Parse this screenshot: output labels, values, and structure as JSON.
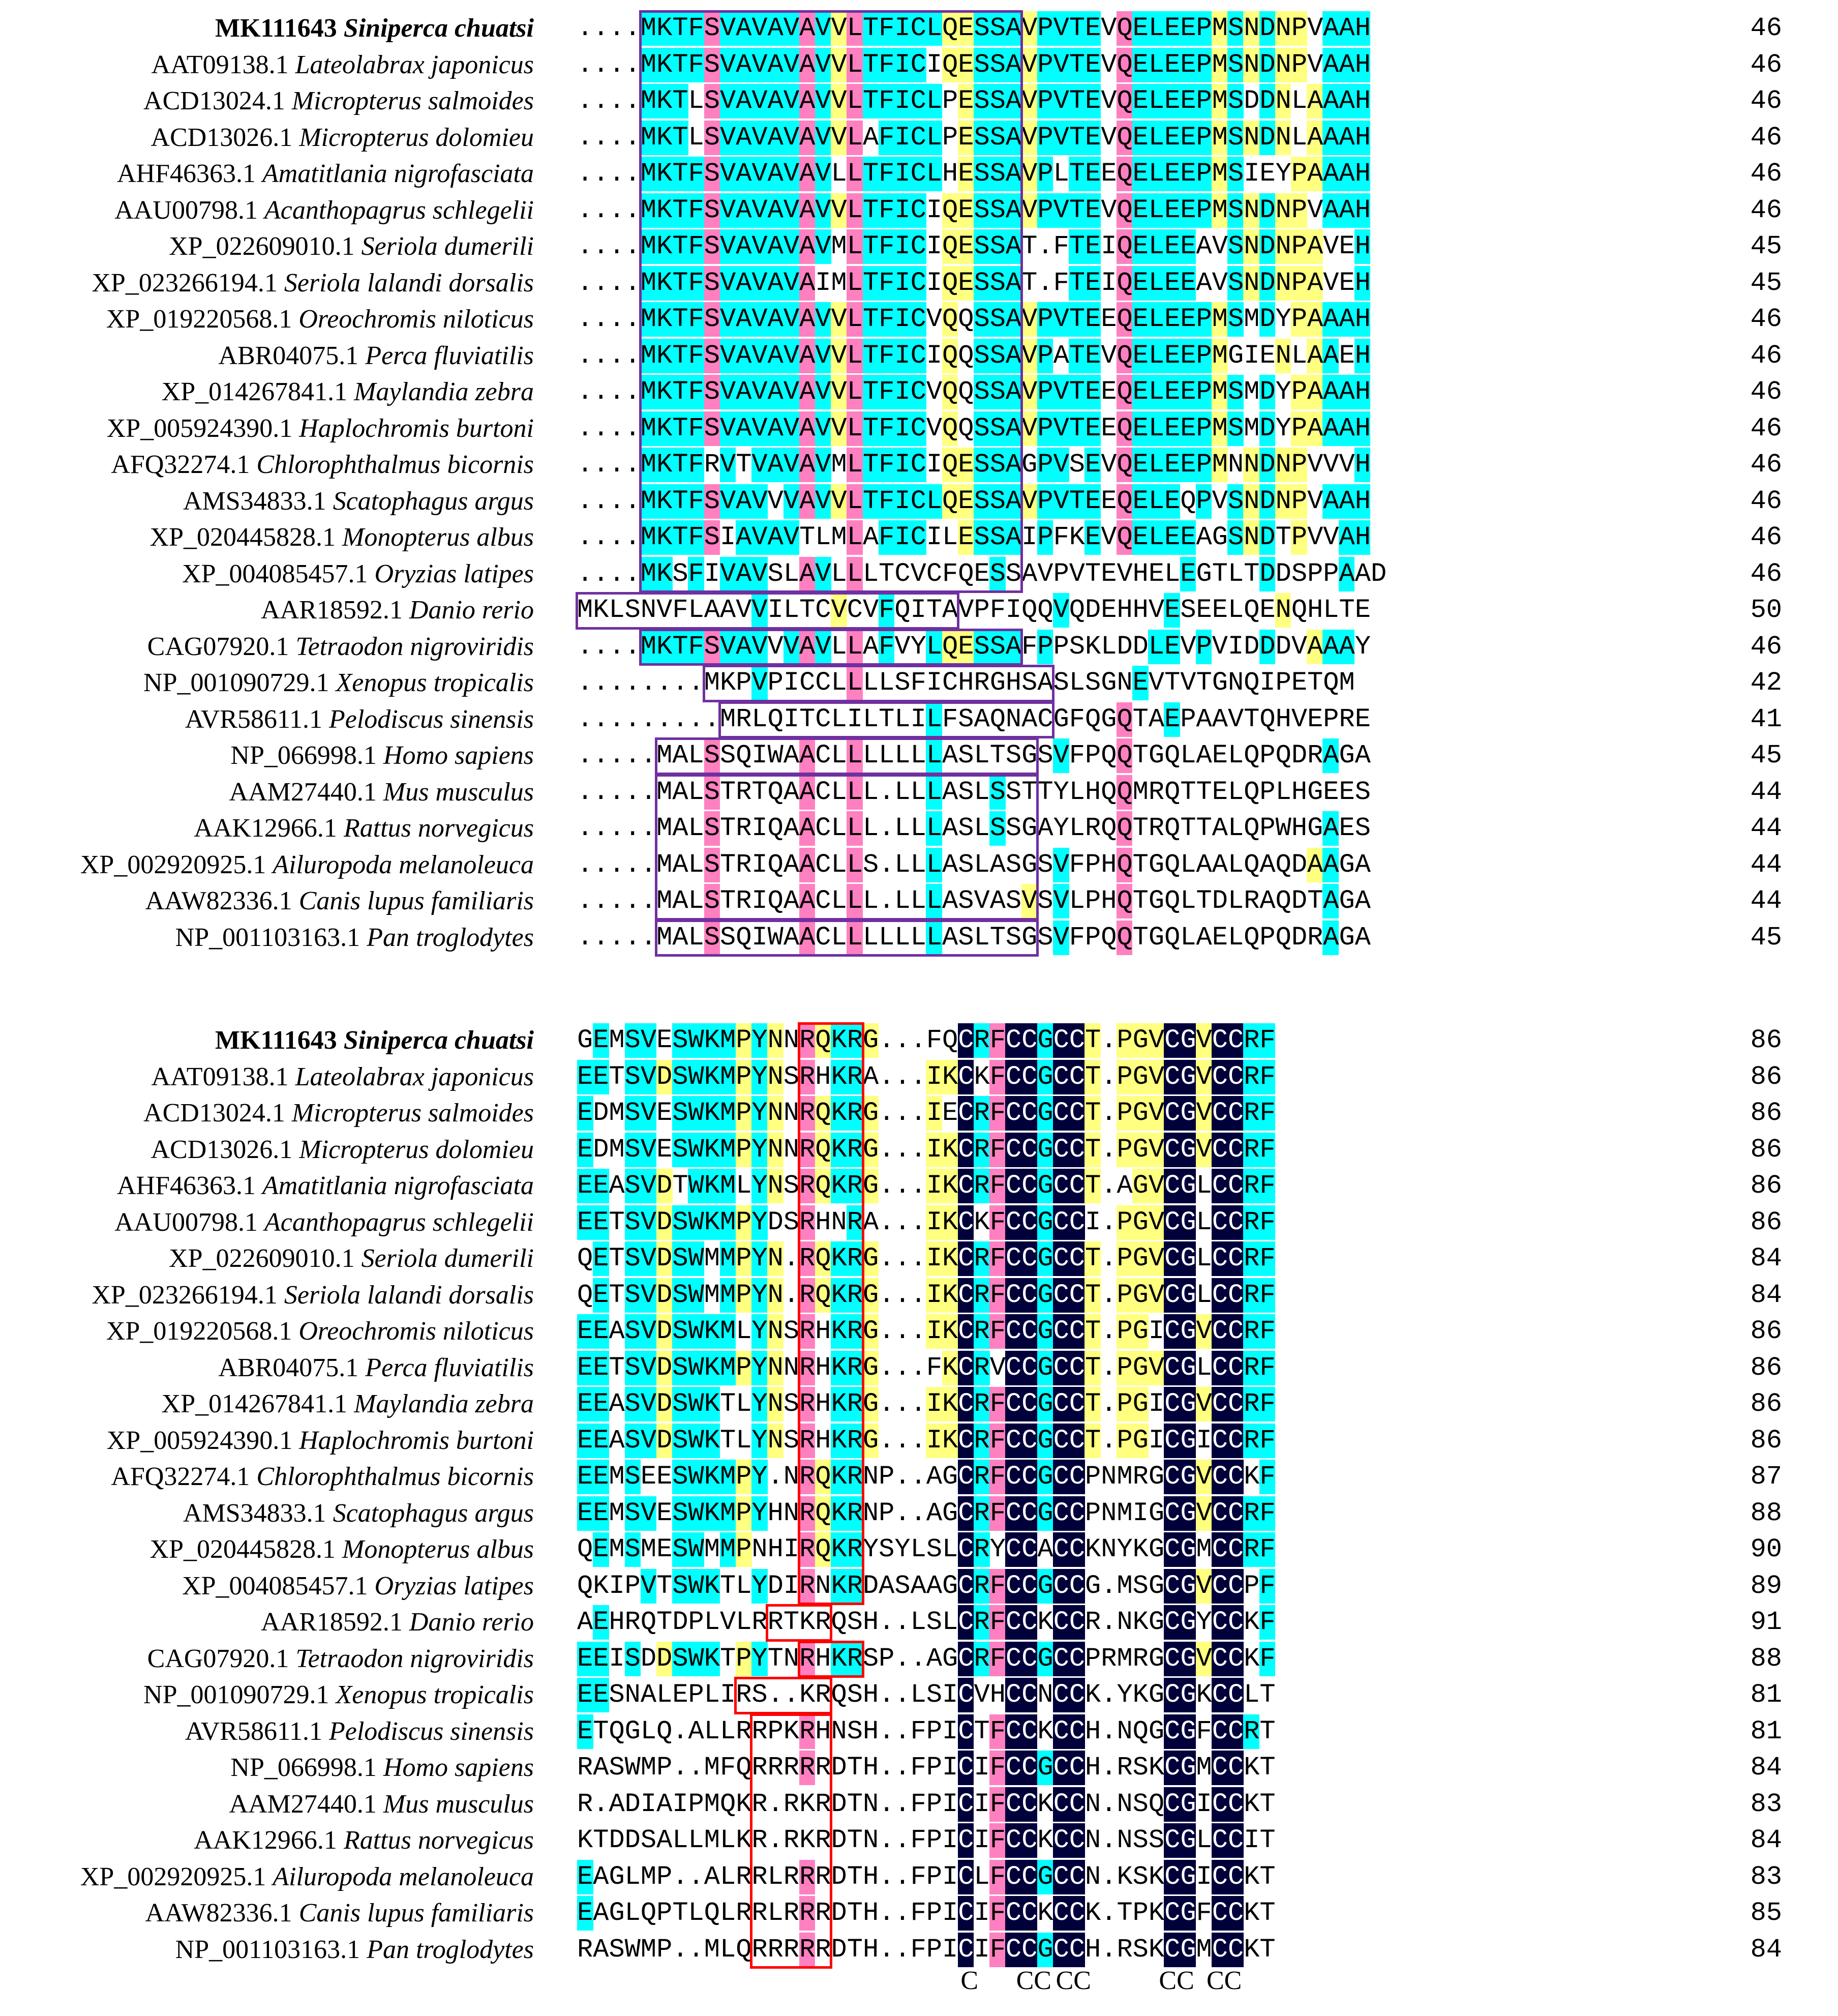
{
  "figure": {
    "blocks": [
      {
        "rows": [
          {
            "acc": "MK111643",
            "sp": "Siniperca chuatsi",
            "bold": true,
            "seq": "....MKTFSVAVAVAVVLTFICLQESSAVPVTEVQELEEPMSNDNPVAAH",
            "end": "46"
          },
          {
            "acc": "AAT09138.1",
            "sp": "Lateolabrax japonicus",
            "seq": "....MKTFSVAVAVAVVLTFICIQESSAVPVTEVQELEEPMSNDNPVAAH",
            "end": "46"
          },
          {
            "acc": "ACD13024.1",
            "sp": "Micropterus salmoides",
            "seq": "....MKTLSVAVAVAVVLTFICLPESSAVPVTEVQELEEPMSDDNLAAAH",
            "end": "46"
          },
          {
            "acc": "ACD13026.1",
            "sp": "Micropterus dolomieu",
            "seq": "....MKTLSVAVAVAVVLAFICLPESSAVPVTEVQELEEPMSNDNLAAAH",
            "end": "46"
          },
          {
            "acc": "AHF46363.1",
            "sp": "Amatitlania nigrofasciata",
            "seq": "....MKTFSVAVAVAVLLTFICLHESSAVPLTEEQELEEPMSIEYPAAAH",
            "end": "46"
          },
          {
            "acc": "AAU00798.1",
            "sp": "Acanthopagrus schlegelii",
            "seq": "....MKTFSVAVAVAVVLTFICIQESSAVPVTEVQELEEPMSNDNPVAAH",
            "end": "46"
          },
          {
            "acc": "XP_022609010.1",
            "sp": "Seriola dumerili",
            "seq": "....MKTFSVAVAVAVMLTFICIQESSAT.FTEIQELEEAVSNDNPAVEH",
            "end": "45"
          },
          {
            "acc": "XP_023266194.1",
            "sp": "Seriola lalandi dorsalis",
            "seq": "....MKTFSVAVAVAIMLTFICIQESSAT.FTEIQELEEAVSNDNPAVEH",
            "end": "45"
          },
          {
            "acc": "XP_019220568.1",
            "sp": "Oreochromis niloticus",
            "seq": "....MKTFSVAVAVAVVLTFICVQQSSAVPVTEEQELEEPMSMDYPAAAH",
            "end": "46"
          },
          {
            "acc": "ABR04075.1",
            "sp": "Perca fluviatilis",
            "seq": "....MKTFSVAVAVAVVLTFICIQQSSAVPATEVQELEEPMGIENLAAEH",
            "end": "46"
          },
          {
            "acc": "XP_014267841.1",
            "sp": "Maylandia zebra",
            "seq": "....MKTFSVAVAVAVVLTFICVQQSSAVPVTEEQELEEPMSMDYPAAAH",
            "end": "46"
          },
          {
            "acc": "XP_005924390.1",
            "sp": "Haplochromis burtoni",
            "seq": "....MKTFSVAVAVAVVLTFICVQQSSAVPVTEEQELEEPMSMDYPAAAH",
            "end": "46"
          },
          {
            "acc": "AFQ32274.1",
            "sp": "Chlorophthalmus bicornis",
            "seq": "....MKTFRVTVAVAVMLTFICIQESSAGPVSEVQELEEPMNNDNPVVVH",
            "end": "46"
          },
          {
            "acc": "AMS34833.1",
            "sp": "Scatophagus argus",
            "seq": "....MKTFSVAVVVAVVLTFICLQESSAVPVTEEQELEQPVSNDNPVAAH",
            "end": "46"
          },
          {
            "acc": "XP_020445828.1",
            "sp": "Monopterus albus",
            "seq": "....MKTFSIAVAVTLMLAFICILESSAIPFKEVQELEEAGSNDTPVVAH",
            "end": "46"
          },
          {
            "acc": "XP_004085457.1",
            "sp": "Oryzias latipes",
            "seq": "....MKSFIVAVSLAVLLLTCVCFQESSAVPVTEVHELEGTLTDDSPPAAD",
            "end": "46"
          },
          {
            "acc": "AAR18592.1",
            "sp": "Danio rerio",
            "seq": "MKLSNVFLAAVVILTCVCVFQITAVPFIQQVQDEHHVESEELQENQHLTE",
            "end": "50"
          },
          {
            "acc": "CAG07920.1",
            "sp": "Tetraodon nigroviridis",
            "seq": "....MKTFSVAVVVAVLLAFVYLQESSAFPPSKLDDLEVPVIDDDVAAAY",
            "end": "46"
          },
          {
            "acc": "NP_001090729.1",
            "sp": "Xenopus tropicalis",
            "seq": "........MKPVPICCLLLLSFICHRGHSASLSGNEVTVTGNQIPETQM",
            "end": "42"
          },
          {
            "acc": "AVR58611.1",
            "sp": "Pelodiscus sinensis",
            "seq": ".........MRLQITCLILTLILFSAQNACGFQGQTAEPAAVTQHVEPRE",
            "end": "41"
          },
          {
            "acc": "NP_066998.1",
            "sp": "Homo sapiens",
            "seq": ".....MALSSQIWAACLLLLLLLASLTSGSVFPQQTGQLAELQPQDRAGA",
            "end": "45"
          },
          {
            "acc": "AAM27440.1",
            "sp": "Mus musculus",
            "seq": ".....MALSTRTQAACLLL.LLLASLSSTTYLHQQMRQTTELQPLHGEES",
            "end": "44"
          },
          {
            "acc": "AAK12966.1",
            "sp": "Rattus norvegicus",
            "seq": ".....MALSTRIQAACLLL.LLLASLSSGAYLRQQTRQTTALQPWHGAES",
            "end": "44"
          },
          {
            "acc": "XP_002920925.1",
            "sp": "Ailuropoda melanoleuca",
            "seq": ".....MALSTRIQAACLLS.LLLASLASGSVFPHQTGQLAALQAQDAAGA",
            "end": "44"
          },
          {
            "acc": "AAW82336.1",
            "sp": "Canis lupus familiaris",
            "seq": ".....MALSTRIQAACLLL.LLLASVASVSVLPHQTGQLTDLRAQDTAGA",
            "end": "44"
          },
          {
            "acc": "NP_001103163.1",
            "sp": "Pan troglodytes",
            "seq": ".....MALSSQIWAACLLLLLLLASLTSGSVFPQQTGQLAELQPQDRAGA",
            "end": "45"
          }
        ]
      },
      {
        "rows": [
          {
            "acc": "MK111643",
            "sp": "Siniperca chuatsi",
            "bold": true,
            "seq": "GEMSVESWKMPYNNRQKRG...FQCRFCCGCCT.PGVCGVCCRF",
            "end": "86"
          },
          {
            "acc": "AAT09138.1",
            "sp": "Lateolabrax japonicus",
            "seq": "EETSVDSWKMPYNSRHKRA...IKCKFCCGCCT.PGVCGVCCRF",
            "end": "86"
          },
          {
            "acc": "ACD13024.1",
            "sp": "Micropterus salmoides",
            "seq": "EDMSVESWKMPYNNRQKRG...IECRFCCGCCT.PGVCGVCCRF",
            "end": "86"
          },
          {
            "acc": "ACD13026.1",
            "sp": "Micropterus dolomieu",
            "seq": "EDMSVESWKMPYNNRQKRG...IKCRFCCGCCT.PGVCGVCCRF",
            "end": "86"
          },
          {
            "acc": "AHF46363.1",
            "sp": "Amatitlania nigrofasciata",
            "seq": "EEASVDTWKMLYNSRQKRG...IKCRFCCGCCT.AGVCGLCCRF",
            "end": "86"
          },
          {
            "acc": "AAU00798.1",
            "sp": "Acanthopagrus schlegelii",
            "seq": "EETSVDSWKMPYDSRHNRA...IKCKFCCGCCI.PGVCGLCCRF",
            "end": "86"
          },
          {
            "acc": "XP_022609010.1",
            "sp": "Seriola dumerili",
            "seq": "QETSVDSWMMPYN.RQKRG...IKCRFCCGCCT.PGVCGLCCRF",
            "end": "84"
          },
          {
            "acc": "XP_023266194.1",
            "sp": "Seriola lalandi dorsalis",
            "seq": "QETSVDSWMMPYN.RQKRG...IKCRFCCGCCT.PGVCGLCCRF",
            "end": "84"
          },
          {
            "acc": "XP_019220568.1",
            "sp": "Oreochromis niloticus",
            "seq": "EEASVDSWKMLYNSRHKRG...IKCRFCCGCCT.PGICGVCCRF",
            "end": "86"
          },
          {
            "acc": "ABR04075.1",
            "sp": "Perca fluviatilis",
            "seq": "EETSVDSWKMPYNNRHKRG...FKCRVCCGCCT.PGVCGLCCRF",
            "end": "86"
          },
          {
            "acc": "XP_014267841.1",
            "sp": "Maylandia zebra",
            "seq": "EEASVDSWKTLYNSRHKRG...IKCRFCCGCCT.PGICGVCCRF",
            "end": "86"
          },
          {
            "acc": "XP_005924390.1",
            "sp": "Haplochromis burtoni",
            "seq": "EEASVDSWKTLYNSRHKRG...IKCRFCCGCCT.PGICGICCRF",
            "end": "86"
          },
          {
            "acc": "AFQ32274.1",
            "sp": "Chlorophthalmus bicornis",
            "seq": "EEMSEESWKMPY.NRQKRNP..AGCRFCCGCCPNMRGCGVCCKF",
            "end": "87"
          },
          {
            "acc": "AMS34833.1",
            "sp": "Scatophagus argus",
            "seq": "EEMSVESWKMPYHNRQKRNP..AGCRFCCGCCPNMIGCGVCCRF",
            "end": "88"
          },
          {
            "acc": "XP_020445828.1",
            "sp": "Monopterus albus",
            "seq": "QEMSMESWMMPNHIRQKRYSYLSLCRYCCACCKNYKGCGMCCRF",
            "end": "90"
          },
          {
            "acc": "XP_004085457.1",
            "sp": "Oryzias latipes",
            "seq": "QKIPVTSWKTLYDIRNKRDASAAGCRFCCGCCG.MSGCGVCCPF",
            "end": "89"
          },
          {
            "acc": "AAR18592.1",
            "sp": "Danio rerio",
            "seq": "AEHRQTDPLVLRRTKRQSH..LSLCRFCCKCCR.NKGCGYCCKF",
            "end": "91"
          },
          {
            "acc": "CAG07920.1",
            "sp": "Tetraodon nigroviridis",
            "seq": "EEISDDSWKTPYTNRHKRSP..AGCRFCCGCCPRMRGCGVCCKF",
            "end": "88"
          },
          {
            "acc": "NP_001090729.1",
            "sp": "Xenopus tropicalis",
            "seq": "EESNALEPLIRS..KRQSH..LSICVHCCNCCK.YKGCGKCCLT",
            "end": "81"
          },
          {
            "acc": "AVR58611.1",
            "sp": "Pelodiscus sinensis",
            "seq": "ETQGLQ.ALLRRPKRHNSH..FPICTFCCKCCH.NQGCGFCCRT",
            "end": "81"
          },
          {
            "acc": "NP_066998.1",
            "sp": "Homo sapiens",
            "seq": "RASWMP..MFQRRRRRDTH..FPICIFCCGCCH.RSKCGMCCKT",
            "end": "84"
          },
          {
            "acc": "AAM27440.1",
            "sp": "Mus musculus",
            "seq": "R.ADIAIPMQKR.RKRDTN..FPICIFCCKCCN.NSQCGICCKT",
            "end": "83"
          },
          {
            "acc": "AAK12966.1",
            "sp": "Rattus norvegicus",
            "seq": "KTDDSALLMLKR.RKRDTN..FPICIFCCKCCN.NSSCGLCCIT",
            "end": "84"
          },
          {
            "acc": "XP_002920925.1",
            "sp": "Ailuropoda melanoleuca",
            "seq": "EAGLMP..ALRRLRRRDTH..FPICLFCCGCCN.KSKCGICCKT",
            "end": "83"
          },
          {
            "acc": "AAW82336.1",
            "sp": "Canis lupus familiaris",
            "seq": "EAGLQPTLQLRRLRRRDTH..FPICIFCCKCCK.TPKCGFCCKT",
            "end": "85"
          },
          {
            "acc": "NP_001103163.1",
            "sp": "Pan troglodytes",
            "seq": "RASWMP..MLQRRRRRDTH..FPICIFCCGCCH.RSKCGMCCKT",
            "end": "84"
          }
        ]
      }
    ],
    "footer_labels": [
      "C",
      "CC",
      "CC",
      "CC",
      "CC"
    ],
    "colors": {
      "identical": "#00003a",
      "high": "#ff80c0",
      "medium": "#00ffff",
      "low": "#ffff80",
      "signal_box": "#7030a0",
      "cleavage_box": "#ff0000"
    }
  }
}
